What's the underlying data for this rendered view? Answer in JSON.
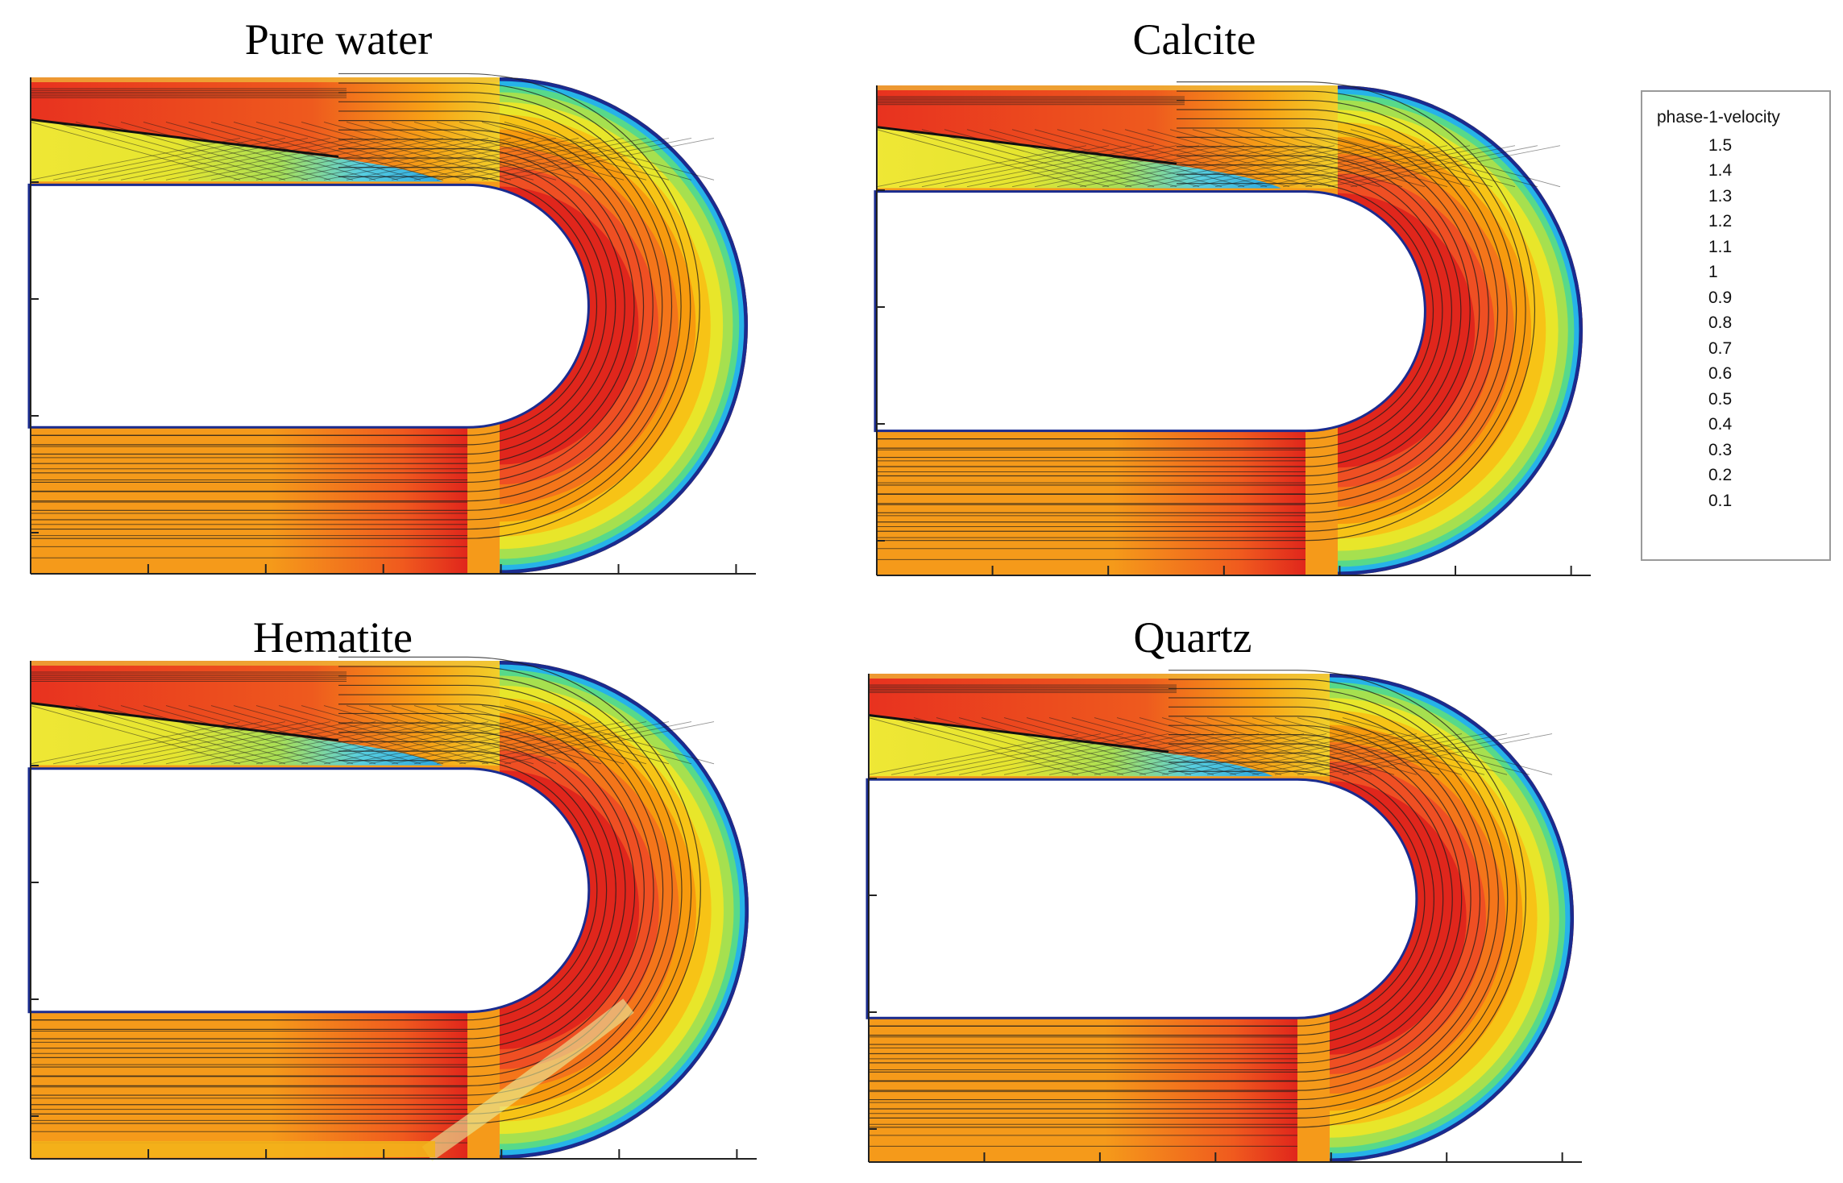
{
  "panels": [
    {
      "title": "Pure water"
    },
    {
      "title": "Calcite"
    },
    {
      "title": "Hematite"
    },
    {
      "title": "Quartz"
    }
  ],
  "legend": {
    "title": "phase-1-velocity",
    "values": [
      "1.5",
      "1.4",
      "1.3",
      "1.2",
      "1.1",
      "1",
      "0.9",
      "0.8",
      "0.7",
      "0.6",
      "0.5",
      "0.4",
      "0.3",
      "0.2",
      "0.1"
    ]
  },
  "colors": {
    "colormap": [
      "#08135e",
      "#0a2fb5",
      "#1c6ee0",
      "#26b3e8",
      "#2fd6c0",
      "#57d98a",
      "#a6e04f",
      "#e8e62a",
      "#f7c316",
      "#f79a0e",
      "#f4751a",
      "#ef4f23",
      "#e8321f",
      "#cf1e1a",
      "#9c1a14"
    ],
    "upper_channel": "#e8321f",
    "lower_channel": "#f59a1a",
    "bend_core": "#e0261c",
    "recirculation": "#e8e62a",
    "stagnation": "#2aa6e0",
    "wall": "#1a2b8f"
  }
}
